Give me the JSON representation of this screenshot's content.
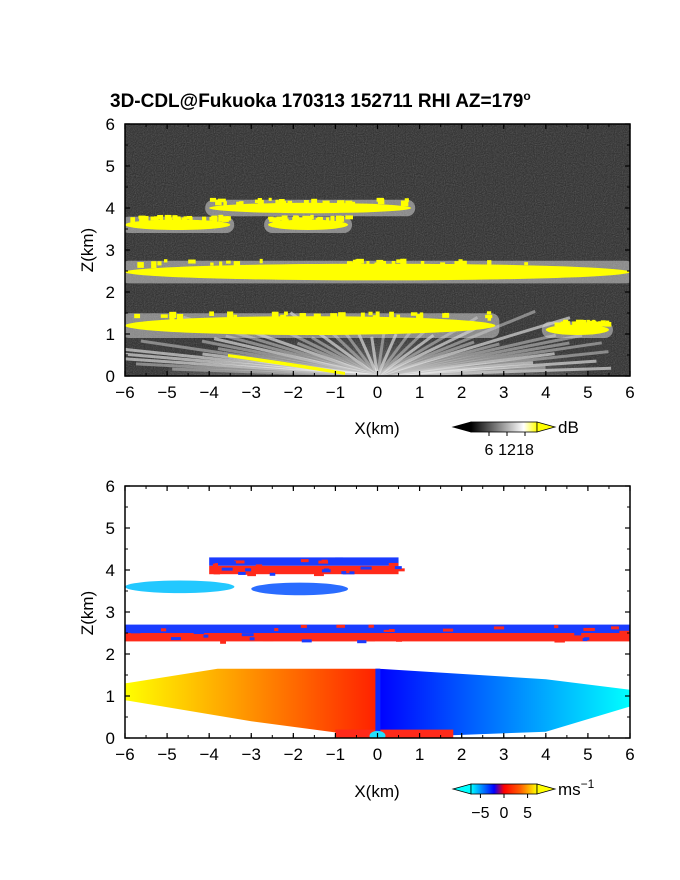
{
  "title": "3D-CDL@Fukuoka 170313 152711 RHI AZ=179",
  "title_superscript": "o",
  "chart_data": [
    {
      "type": "heatmap",
      "quantity": "backscatter intensity",
      "xlabel": "X(km)",
      "ylabel": "Z(km)",
      "xlim": [
        -6,
        6
      ],
      "ylim": [
        0,
        6
      ],
      "x_ticks": [
        "−6",
        "−5",
        "−4",
        "−3",
        "−2",
        "−1",
        "0",
        "1",
        "2",
        "3",
        "4",
        "5",
        "6"
      ],
      "y_ticks": [
        "0",
        "1",
        "2",
        "3",
        "4",
        "5",
        "6"
      ],
      "colorbar": {
        "unit": "dB",
        "ticks": [
          "6",
          "12",
          "18"
        ],
        "range": [
          0,
          22
        ],
        "colors": [
          "#000000",
          "#ffffff",
          "#ffff00"
        ]
      },
      "features": [
        {
          "x": [
            -6,
            6
          ],
          "z": [
            2.3,
            2.65
          ],
          "level": "high"
        },
        {
          "x": [
            -6,
            -3.5
          ],
          "z": [
            3.5,
            3.7
          ],
          "level": "high"
        },
        {
          "x": [
            -2.6,
            -0.7
          ],
          "z": [
            3.5,
            3.7
          ],
          "level": "high"
        },
        {
          "x": [
            -4,
            0.8
          ],
          "z": [
            3.9,
            4.1
          ],
          "level": "high"
        },
        {
          "x": [
            -6,
            2.8
          ],
          "z": [
            1.0,
            1.4
          ],
          "level": "high"
        },
        {
          "x": [
            4.0,
            5.5
          ],
          "z": [
            1.0,
            1.2
          ],
          "level": "high"
        }
      ]
    },
    {
      "type": "heatmap",
      "quantity": "radial velocity",
      "xlabel": "X(km)",
      "ylabel": "Z(km)",
      "xlim": [
        -6,
        6
      ],
      "ylim": [
        0,
        6
      ],
      "x_ticks": [
        "−6",
        "−5",
        "−4",
        "−3",
        "−2",
        "−1",
        "0",
        "1",
        "2",
        "3",
        "4",
        "5",
        "6"
      ],
      "y_ticks": [
        "0",
        "1",
        "2",
        "3",
        "4",
        "5",
        "6"
      ],
      "colorbar": {
        "unit": "ms",
        "unit_superscript": "−1",
        "ticks": [
          "−5",
          "0",
          "5"
        ],
        "range": [
          -7,
          7
        ],
        "colors": [
          "#00ffff",
          "#0000ff",
          "#ff0000",
          "#ffff00"
        ]
      },
      "features": [
        {
          "x": [
            -6,
            6
          ],
          "z": [
            2.3,
            2.7
          ],
          "velocity": "mixed"
        },
        {
          "x": [
            -6,
            -3.4
          ],
          "z": [
            3.45,
            3.75
          ],
          "velocity": -5
        },
        {
          "x": [
            -3,
            -0.7
          ],
          "z": [
            3.4,
            3.7
          ],
          "velocity": -4
        },
        {
          "x": [
            -4,
            0.5
          ],
          "z": [
            3.9,
            4.3
          ],
          "velocity": "mixed"
        },
        {
          "x": [
            -6,
            0
          ],
          "z": [
            0,
            1.7
          ],
          "velocity": 4
        },
        {
          "x": [
            0,
            6
          ],
          "z": [
            0,
            1.7
          ],
          "velocity": -4
        }
      ]
    }
  ]
}
